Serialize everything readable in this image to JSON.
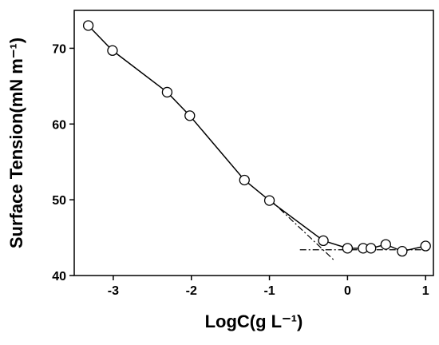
{
  "chart_data": {
    "type": "line",
    "xlabel": "LogC(g L⁻¹)",
    "ylabel": "Surface Tension(mN m⁻¹)",
    "series": [
      {
        "color": "#000000",
        "x": [
          -3.32,
          -3.01,
          -2.31,
          -2.02,
          -1.32,
          -1.0,
          -0.31,
          0,
          0.2,
          0.3,
          0.49,
          0.7,
          1.0
        ],
        "values": [
          73.0,
          69.7,
          64.2,
          61.1,
          52.6,
          49.9,
          44.6,
          43.6,
          43.6,
          43.6,
          44.1,
          43.2,
          43.9
        ]
      }
    ],
    "reference_lines": [
      {
        "x": [
          -0.99,
          -0.17
        ],
        "values": [
          50.0,
          42.0
        ]
      },
      {
        "x": [
          -0.61,
          1.0
        ],
        "values": [
          43.4,
          43.4
        ]
      }
    ],
    "xlim": [
      -3.5,
      1.1
    ],
    "xticks": [
      -3,
      -2,
      -1,
      0,
      1
    ],
    "ylim": [
      40,
      75
    ],
    "yticks": [
      40,
      50,
      60,
      70
    ]
  }
}
